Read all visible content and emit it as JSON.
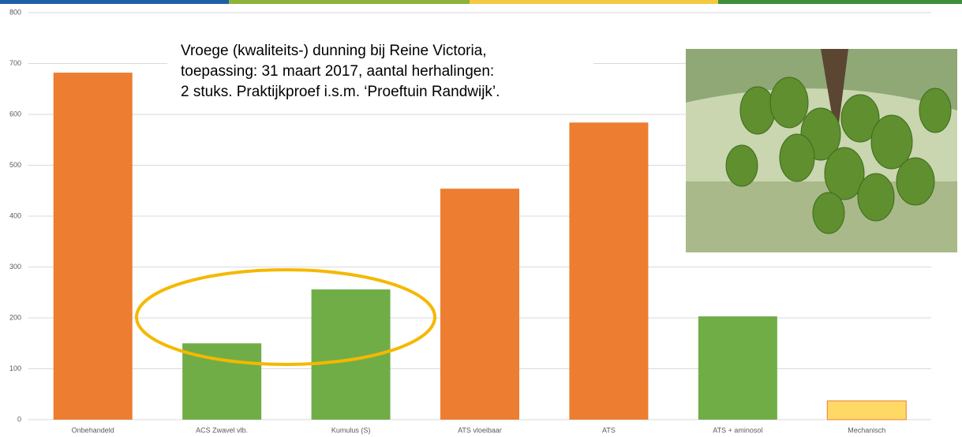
{
  "chart_data": {
    "type": "bar",
    "annotation": [
      "Vroege (kwaliteits-) dunning bij Reine Victoria,",
      "toepassing: 31 maart 2017, aantal herhalingen:",
      "2 stuks. Praktijkproef i.s.m. ‘Proeftuin Randwijk’."
    ],
    "categories": [
      "Onbehandeld",
      "ACS Zwavel vlb.",
      "Kumulus (S)",
      "ATS  vloeibaar",
      "ATS",
      "ATS + aminosol",
      "Mechanisch"
    ],
    "values": [
      682,
      150,
      256,
      454,
      584,
      203,
      37
    ],
    "colors": [
      "#ed7d31",
      "#70ad47",
      "#70ad47",
      "#ed7d31",
      "#ed7d31",
      "#70ad47",
      "#ffd966"
    ],
    "ylim": [
      0,
      800
    ],
    "yticks": [
      0,
      100,
      200,
      300,
      400,
      500,
      600,
      700,
      800
    ],
    "grid": true
  }
}
